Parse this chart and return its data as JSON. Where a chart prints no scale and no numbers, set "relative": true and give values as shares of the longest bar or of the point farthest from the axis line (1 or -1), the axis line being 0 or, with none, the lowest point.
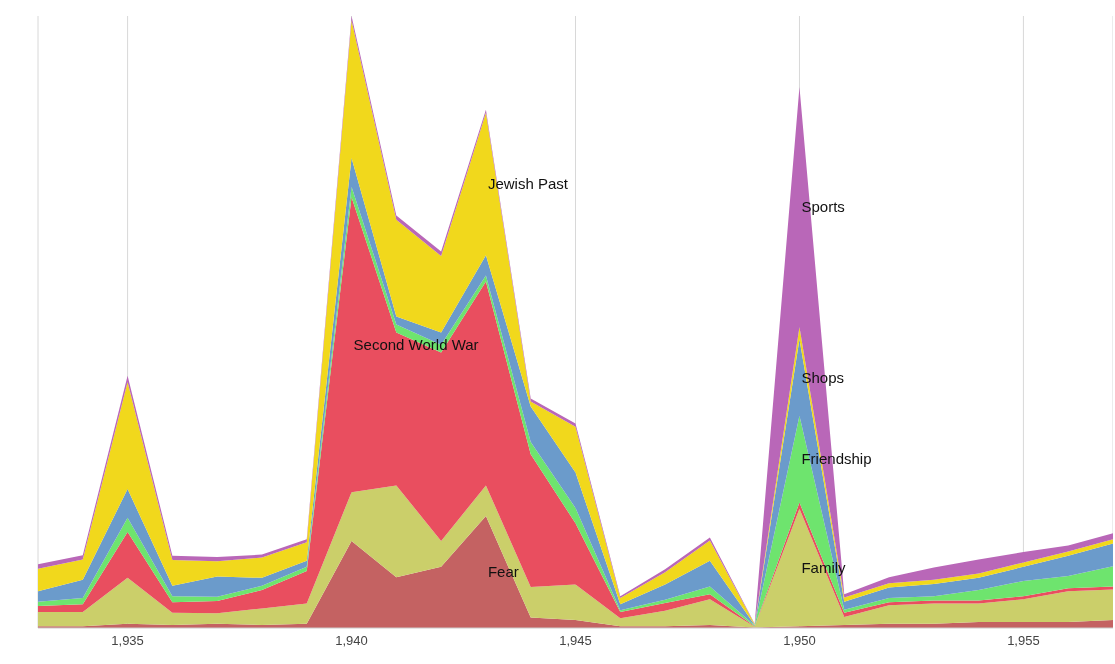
{
  "chart_data": {
    "type": "area",
    "stacked": true,
    "relative": true,
    "grid": "x",
    "legend": false,
    "x": [
      1933,
      1934,
      1935,
      1936,
      1937,
      1938,
      1939,
      1940,
      1941,
      1942,
      1943,
      1944,
      1945,
      1946,
      1947,
      1948,
      1949,
      1950,
      1951,
      1952,
      1953,
      1954,
      1955,
      1956,
      1957
    ],
    "xlim": [
      1933,
      1957
    ],
    "xticks": [
      {
        "value": 1935,
        "label": "1,935"
      },
      {
        "value": 1940,
        "label": "1,940"
      },
      {
        "value": 1945,
        "label": "1,945"
      },
      {
        "value": 1950,
        "label": "1,950"
      },
      {
        "value": 1955,
        "label": "1,955"
      }
    ],
    "series": [
      {
        "name": "Fear",
        "color": "#c46262",
        "values": [
          0.003,
          0.003,
          0.007,
          0.005,
          0.007,
          0.005,
          0.007,
          0.142,
          0.083,
          0.1,
          0.183,
          0.017,
          0.013,
          0.003,
          0.003,
          0.005,
          0.001,
          0.003,
          0.005,
          0.007,
          0.007,
          0.01,
          0.01,
          0.01,
          0.013
        ]
      },
      {
        "name": "Family",
        "color": "#cbcf6a",
        "values": [
          0.023,
          0.023,
          0.075,
          0.02,
          0.017,
          0.027,
          0.033,
          0.08,
          0.15,
          0.042,
          0.05,
          0.05,
          0.058,
          0.013,
          0.025,
          0.042,
          0.001,
          0.192,
          0.013,
          0.03,
          0.033,
          0.03,
          0.037,
          0.05,
          0.05
        ]
      },
      {
        "name": "Second World War",
        "color": "#e94e5f",
        "values": [
          0.01,
          0.013,
          0.075,
          0.017,
          0.02,
          0.03,
          0.053,
          0.482,
          0.25,
          0.308,
          0.333,
          0.217,
          0.1,
          0.01,
          0.013,
          0.008,
          0.001,
          0.01,
          0.007,
          0.005,
          0.005,
          0.005,
          0.005,
          0.005,
          0.005
        ]
      },
      {
        "name": "Friendship",
        "color": "#6ee46e",
        "values": [
          0.007,
          0.01,
          0.023,
          0.01,
          0.007,
          0.007,
          0.007,
          0.017,
          0.013,
          0.013,
          0.01,
          0.02,
          0.025,
          0.003,
          0.005,
          0.013,
          0.001,
          0.142,
          0.005,
          0.007,
          0.007,
          0.017,
          0.025,
          0.02,
          0.033
        ]
      },
      {
        "name": "Shops",
        "color": "#6b9bcb",
        "values": [
          0.017,
          0.03,
          0.047,
          0.017,
          0.033,
          0.013,
          0.01,
          0.047,
          0.013,
          0.02,
          0.033,
          0.058,
          0.058,
          0.01,
          0.025,
          0.042,
          0.001,
          0.125,
          0.013,
          0.017,
          0.02,
          0.02,
          0.023,
          0.033,
          0.037
        ]
      },
      {
        "name": "Jewish Past",
        "color": "#f1d81c",
        "values": [
          0.037,
          0.033,
          0.175,
          0.042,
          0.025,
          0.033,
          0.03,
          0.225,
          0.158,
          0.125,
          0.233,
          0.008,
          0.075,
          0.01,
          0.02,
          0.033,
          0.001,
          0.02,
          0.007,
          0.007,
          0.007,
          0.007,
          0.007,
          0.007,
          0.007
        ]
      },
      {
        "name": "Sports",
        "color": "#b967b8",
        "values": [
          0.007,
          0.007,
          0.01,
          0.007,
          0.007,
          0.005,
          0.005,
          0.007,
          0.007,
          0.007,
          0.005,
          0.005,
          0.005,
          0.003,
          0.005,
          0.005,
          0.001,
          0.392,
          0.005,
          0.01,
          0.02,
          0.023,
          0.017,
          0.01,
          0.01
        ]
      }
    ]
  }
}
